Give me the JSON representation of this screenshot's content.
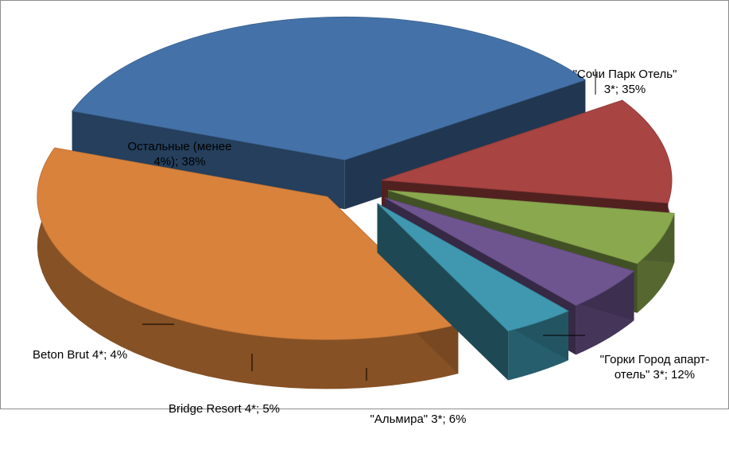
{
  "chart_data": {
    "type": "pie",
    "title": "",
    "style": "3d-exploded",
    "slices": [
      {
        "label": "\"Сочи Парк Отель\" 3*; 35%",
        "name": "\"Сочи Парк Отель\" 3*",
        "value": 35,
        "color": "#4472a8"
      },
      {
        "label": "\"Горки Город апарт-отель\" 3*; 12%",
        "name": "\"Горки Город апарт-отель\" 3*",
        "value": 12,
        "color": "#a84442"
      },
      {
        "label": "\"Альмира\" 3*; 6%",
        "name": "\"Альмира\" 3*",
        "value": 6,
        "color": "#8aa84e"
      },
      {
        "label": "Bridge Resort 4*; 5%",
        "name": "Bridge Resort 4*",
        "value": 5,
        "color": "#6f5590"
      },
      {
        "label": "Beton Brut 4*; 4%",
        "name": "Beton Brut 4*",
        "value": 4,
        "color": "#3f98b0"
      },
      {
        "label": "Остальные (менее 4%); 38%",
        "name": "Остальные (менее 4%)",
        "value": 38,
        "color": "#d8823c"
      }
    ],
    "label_text": [
      [
        "\"Сочи Парк Отель\"",
        "3*; 35%"
      ],
      [
        "\"Горки Город апарт-",
        "отель\" 3*; 12%"
      ],
      [
        "\"Альмира\" 3*; 6%"
      ],
      [
        "Bridge Resort 4*; 5%"
      ],
      [
        "Beton Brut 4*; 4%"
      ],
      [
        "Остальные (менее",
        "4%); 38%"
      ]
    ]
  }
}
